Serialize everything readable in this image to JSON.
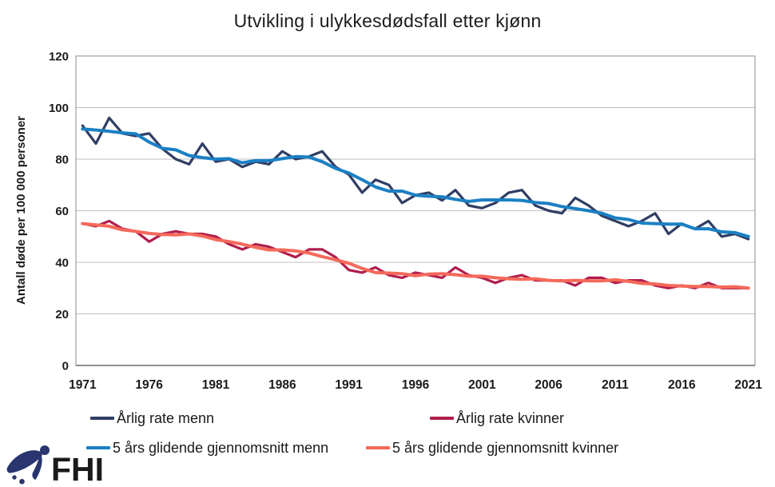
{
  "logo": {
    "text": "FHI",
    "color": "#28356E"
  },
  "chart_data": {
    "type": "line",
    "title": "Utvikling i ulykkesdødsfall etter kjønn",
    "xlabel": "",
    "ylabel": "Antall døde per 100 000 personer",
    "ylim": [
      0,
      120
    ],
    "grid": true,
    "legend_position": "bottom",
    "axis_border_color": "#8C8C8C",
    "gridline_color": "#BFBFBF",
    "zero_axis_color": "#262626",
    "x": [
      1971,
      1972,
      1973,
      1974,
      1975,
      1976,
      1977,
      1978,
      1979,
      1980,
      1981,
      1982,
      1983,
      1984,
      1985,
      1986,
      1987,
      1988,
      1989,
      1990,
      1991,
      1992,
      1993,
      1994,
      1995,
      1996,
      1997,
      1998,
      1999,
      2000,
      2001,
      2002,
      2003,
      2004,
      2005,
      2006,
      2007,
      2008,
      2009,
      2010,
      2011,
      2012,
      2013,
      2014,
      2015,
      2016,
      2017,
      2018,
      2019,
      2020,
      2021
    ],
    "x_ticks": [
      1971,
      1976,
      1981,
      1986,
      1991,
      1996,
      2001,
      2006,
      2011,
      2016,
      2021
    ],
    "y_ticks": [
      0,
      20,
      40,
      60,
      80,
      100,
      120
    ],
    "series": [
      {
        "name": "Årlig rate menn",
        "color": "#303E63",
        "width": 3.2,
        "values": [
          93,
          86,
          96,
          90,
          89,
          90,
          84,
          80,
          78,
          86,
          79,
          80,
          77,
          79,
          78,
          83,
          80,
          81,
          83,
          77,
          74,
          67,
          72,
          70,
          63,
          66,
          67,
          64,
          68,
          62,
          61,
          63,
          67,
          68,
          62,
          60,
          59,
          65,
          62,
          58,
          56,
          54,
          56,
          59,
          51,
          55,
          53,
          56,
          50,
          51,
          49
        ]
      },
      {
        "name": "Årlig rate kvinner",
        "color": "#B01E4B",
        "width": 3.2,
        "values": [
          55,
          54,
          56,
          53,
          52,
          48,
          51,
          52,
          51,
          51,
          50,
          47,
          45,
          47,
          46,
          44,
          42,
          45,
          45,
          42,
          37,
          36,
          38,
          35,
          34,
          36,
          35,
          34,
          38,
          35,
          34,
          32,
          34,
          35,
          33,
          33,
          33,
          31,
          34,
          34,
          32,
          33,
          33,
          31,
          30,
          31,
          30,
          32,
          30,
          30,
          30
        ]
      },
      {
        "name": "5 års glidende gjennomsnitt menn",
        "color": "#1B80C4",
        "width": 4,
        "values": [
          91.7,
          91.3,
          90.8,
          90.2,
          89.8,
          86.6,
          84.2,
          83.6,
          81.4,
          80.6,
          80.0,
          80.2,
          78.6,
          79.4,
          79.4,
          80.2,
          81.0,
          80.8,
          79.0,
          76.4,
          74.6,
          72.0,
          69.2,
          67.6,
          67.6,
          66.0,
          65.6,
          65.4,
          64.4,
          63.6,
          64.2,
          64.2,
          64.2,
          64.0,
          63.2,
          62.8,
          61.6,
          60.8,
          60.0,
          59.0,
          57.2,
          56.6,
          55.2,
          55.0,
          54.8,
          54.8,
          53.0,
          53.0,
          51.8,
          51.5,
          50.0
        ]
      },
      {
        "name": "5 års glidende gjennomsnitt kvinner",
        "color": "#F5695A",
        "width": 4,
        "values": [
          55.0,
          54.5,
          54.0,
          52.6,
          52.0,
          51.2,
          50.8,
          50.6,
          51.0,
          50.2,
          48.8,
          48.0,
          47.0,
          45.8,
          44.8,
          44.8,
          44.4,
          43.6,
          42.2,
          41.0,
          39.6,
          37.6,
          36.0,
          35.8,
          35.6,
          34.8,
          35.4,
          35.6,
          35.2,
          34.6,
          34.6,
          34.0,
          33.6,
          33.4,
          33.6,
          33.0,
          32.8,
          33.0,
          32.8,
          32.8,
          33.2,
          32.6,
          31.8,
          31.6,
          31.0,
          30.8,
          30.6,
          30.6,
          30.4,
          30.5,
          30.0
        ]
      }
    ]
  }
}
